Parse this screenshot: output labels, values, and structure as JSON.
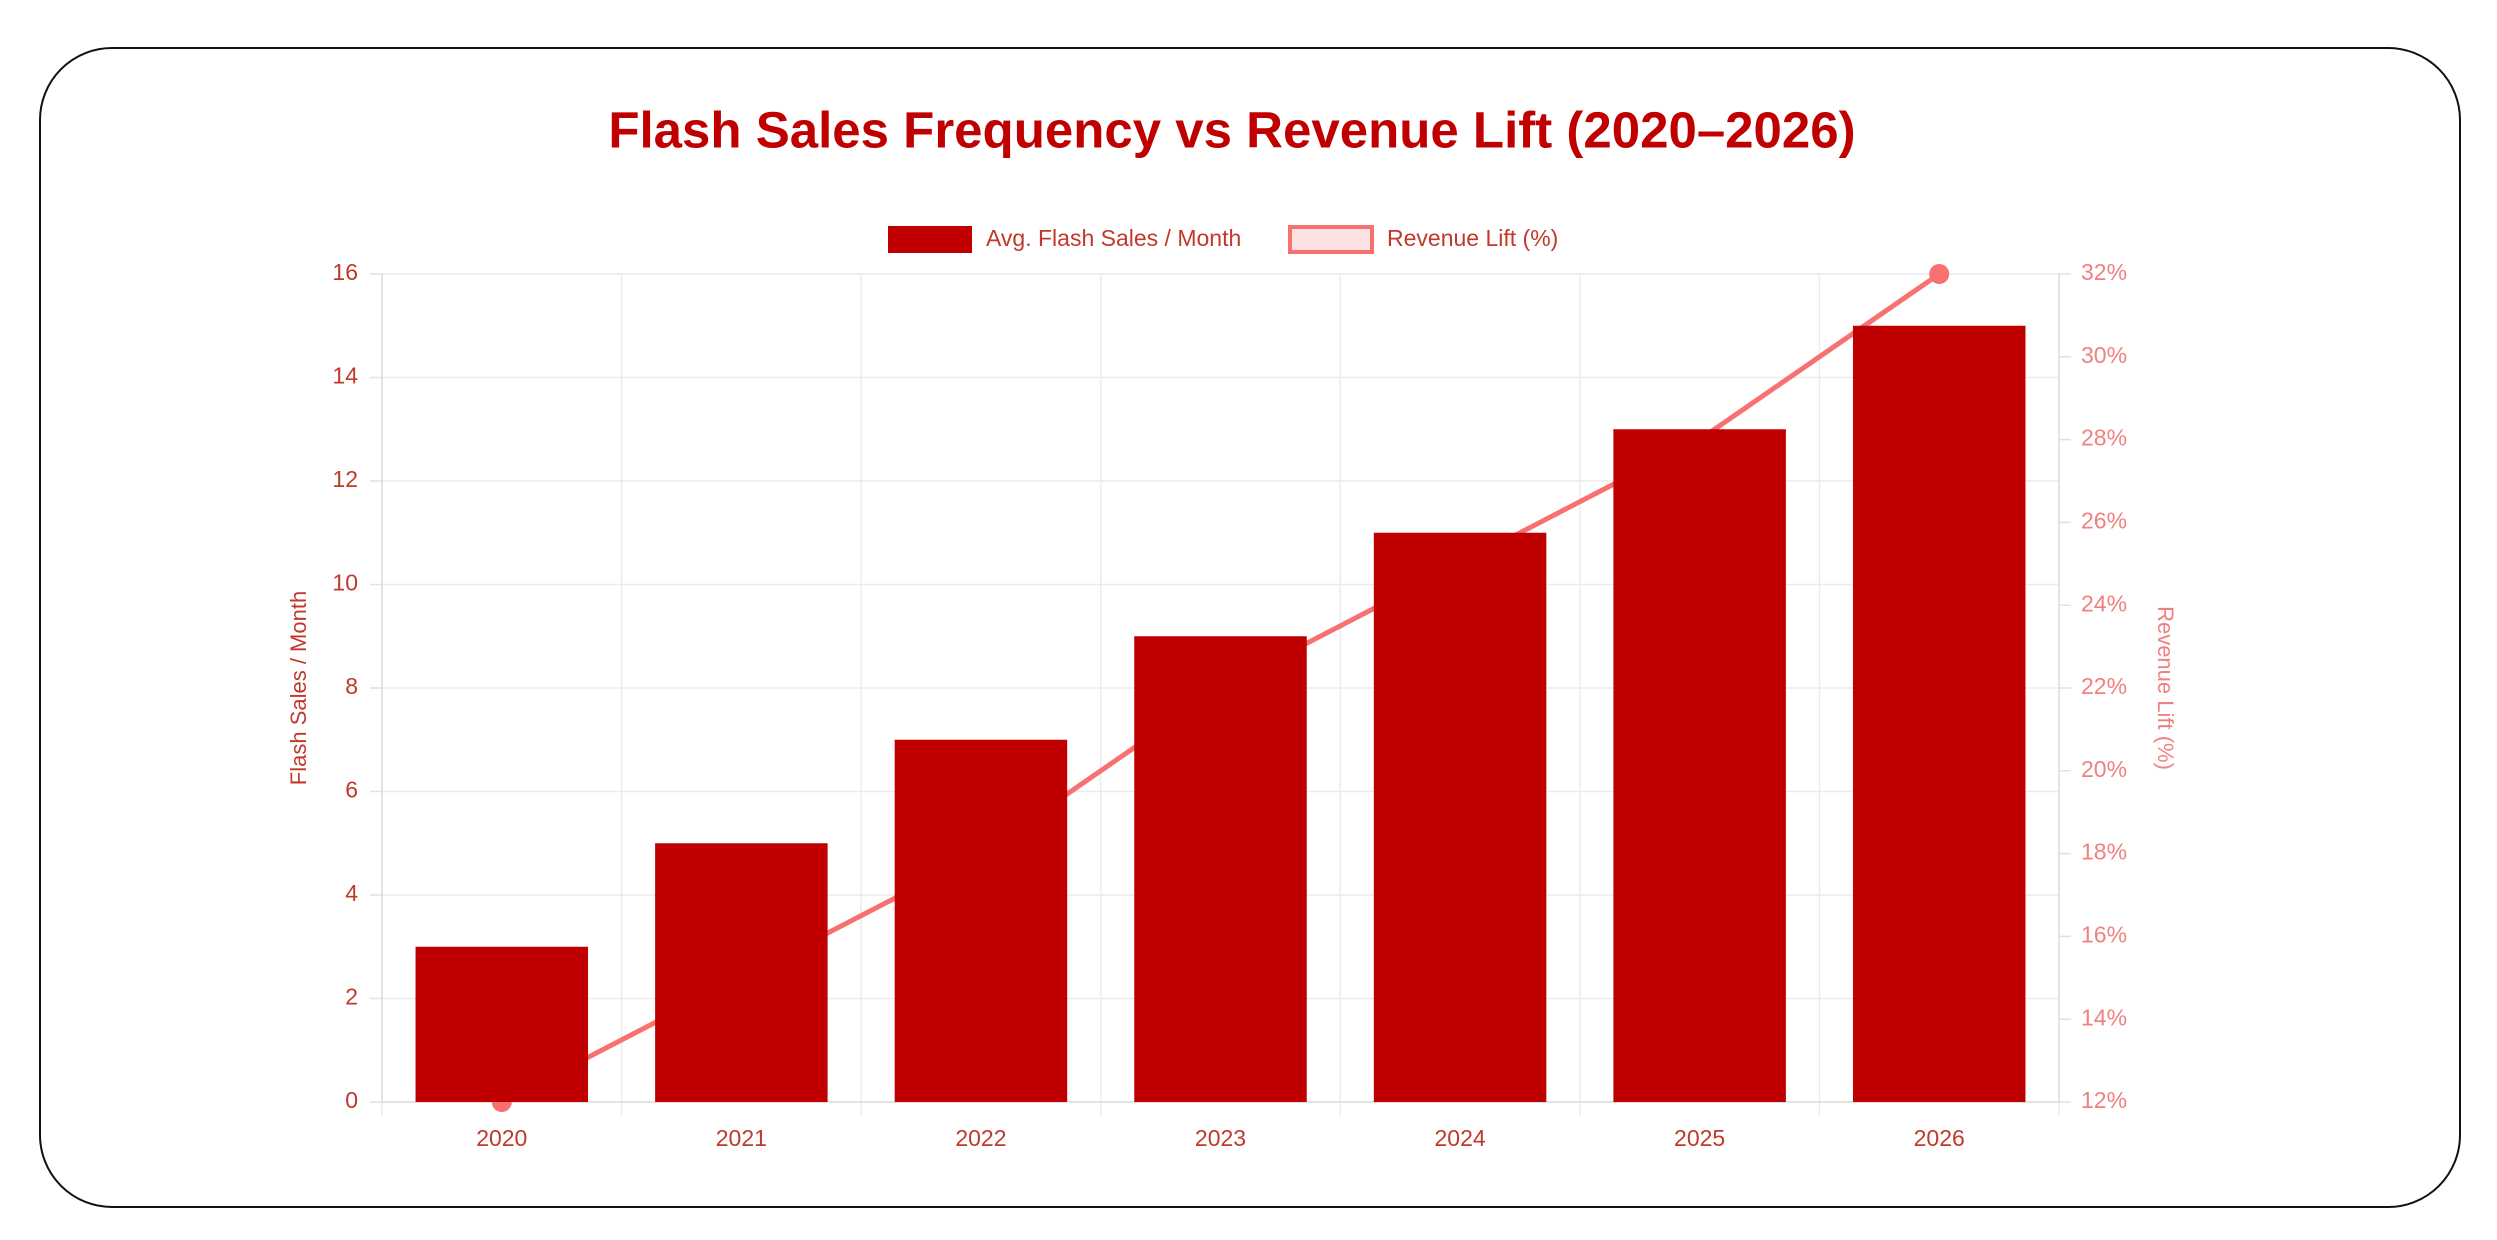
{
  "chart_data": {
    "type": "bar",
    "title": "Flash Sales Frequency vs Revenue Lift (2020–2026)",
    "categories": [
      "2020",
      "2021",
      "2022",
      "2023",
      "2024",
      "2025",
      "2026"
    ],
    "series": [
      {
        "name": "Avg. Flash Sales / Month",
        "type": "bar",
        "color": "#c00000",
        "values": [
          3,
          5,
          7,
          9,
          11,
          13,
          15
        ]
      },
      {
        "name": "Revenue Lift (%)",
        "type": "line",
        "axis": "y2",
        "color": "#f87171",
        "values": [
          12,
          15,
          18,
          22,
          25,
          28,
          32
        ]
      }
    ],
    "y_label": "Flash Sales / Month",
    "y2_label": "Revenue Lift (%)",
    "ylim": [
      0,
      16
    ],
    "yticks": [
      0,
      2,
      4,
      6,
      8,
      10,
      12,
      14,
      16
    ],
    "y2lim": [
      12,
      32
    ],
    "y2ticks": [
      {
        "value": 12,
        "label": "12%"
      },
      {
        "value": 14,
        "label": "14%"
      },
      {
        "value": 16,
        "label": "16%"
      },
      {
        "value": 18,
        "label": "18%"
      },
      {
        "value": 20,
        "label": "20%"
      },
      {
        "value": 22,
        "label": "22%"
      },
      {
        "value": 24,
        "label": "24%"
      },
      {
        "value": 26,
        "label": "26%"
      },
      {
        "value": 28,
        "label": "28%"
      },
      {
        "value": 30,
        "label": "30%"
      },
      {
        "value": 32,
        "label": "32%"
      }
    ],
    "grid": true,
    "legend": "top"
  }
}
